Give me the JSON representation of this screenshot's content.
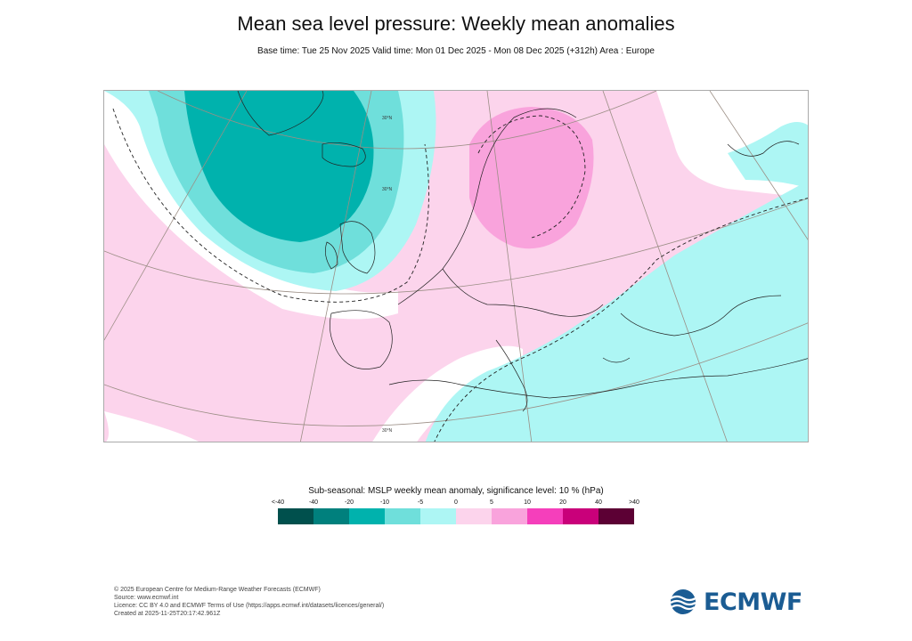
{
  "header": {
    "title": "Mean sea level pressure: Weekly mean anomalies",
    "subtitle": "Base time: Tue 25 Nov 2025 Valid time: Mon 01 Dec 2025 - Mon 08 Dec 2025 (+312h) Area : Europe"
  },
  "map": {
    "graticule_labels": [
      "30°N",
      "30°N",
      "30°N"
    ]
  },
  "legend": {
    "title": "Sub-seasonal: MSLP weekly mean anomaly, significance level: 10 % (hPa)",
    "labels": [
      "<-40",
      "-40",
      "-20",
      "-10",
      "-5",
      "0",
      "5",
      "10",
      "20",
      "40",
      ">40"
    ],
    "colors": [
      "#00504d",
      "#00807d",
      "#00b2ad",
      "#6fdfdb",
      "#adf6f4",
      "#fcd4ec",
      "#f9a3dc",
      "#f53fbb",
      "#c9007a",
      "#5c0034"
    ]
  },
  "credits": {
    "line1": "© 2025 European Centre for Medium-Range Weather Forecasts (ECMWF)",
    "line2": "Source: www.ecmwf.int",
    "line3": "Licence: CC BY 4.0 and ECMWF Terms of Use (https://apps.ecmwf.int/datasets/licences/general/)",
    "line4": "Created at 2025-11-25T20:17:42.961Z"
  },
  "logo": {
    "text": "ECMWF",
    "color": "#1b5c93"
  }
}
